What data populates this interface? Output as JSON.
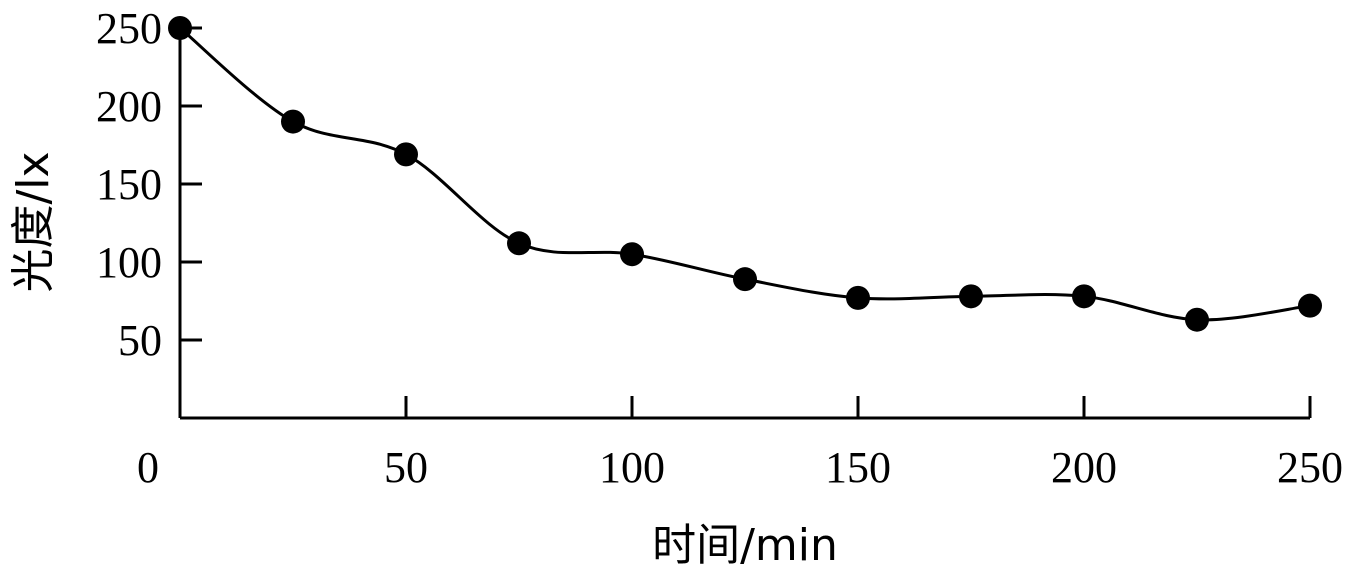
{
  "chart_data": {
    "type": "line",
    "xlabel": "时间/min",
    "ylabel": "光度/lx",
    "xlim": [
      0,
      250
    ],
    "ylim": [
      0,
      250
    ],
    "x_ticks": [
      0,
      50,
      100,
      150,
      200,
      250
    ],
    "y_ticks": [
      50,
      100,
      150,
      200,
      250
    ],
    "grid": false,
    "series": [
      {
        "color": "#000000",
        "marker": "filled-circle",
        "x": [
          0,
          25,
          50,
          75,
          100,
          125,
          150,
          175,
          200,
          225,
          250
        ],
        "y": [
          250,
          190,
          169,
          112,
          105,
          89,
          77,
          78,
          78,
          63,
          72
        ]
      }
    ]
  }
}
